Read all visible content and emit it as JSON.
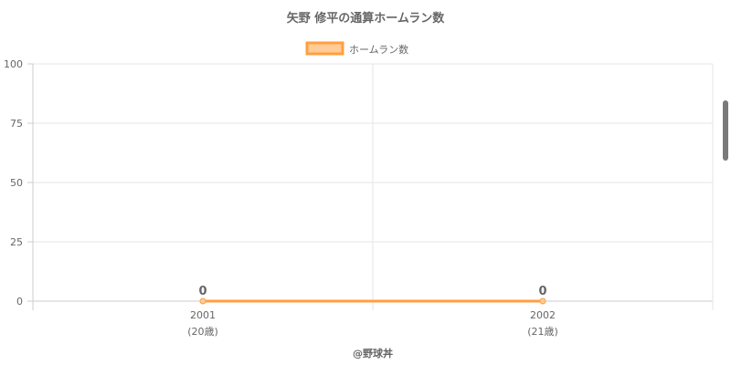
{
  "chart_data": {
    "type": "line",
    "title": "矢野 修平の通算ホームラン数",
    "categories": [
      "2001",
      "2002"
    ],
    "category_sublabels": [
      "(20歳)",
      "(21歳)"
    ],
    "series": [
      {
        "name": "ホームラン数",
        "values": [
          0,
          0
        ],
        "data_labels": [
          "0",
          "0"
        ],
        "color": "#ff9f40",
        "fill": "#ffcc99"
      }
    ],
    "ylim": [
      0,
      100
    ],
    "yticks": [
      "0",
      "25",
      "50",
      "75",
      "100"
    ],
    "grid": true,
    "legend": "top",
    "xlabel": "",
    "ylabel": ""
  },
  "footer": {
    "credit": "@野球丼"
  }
}
